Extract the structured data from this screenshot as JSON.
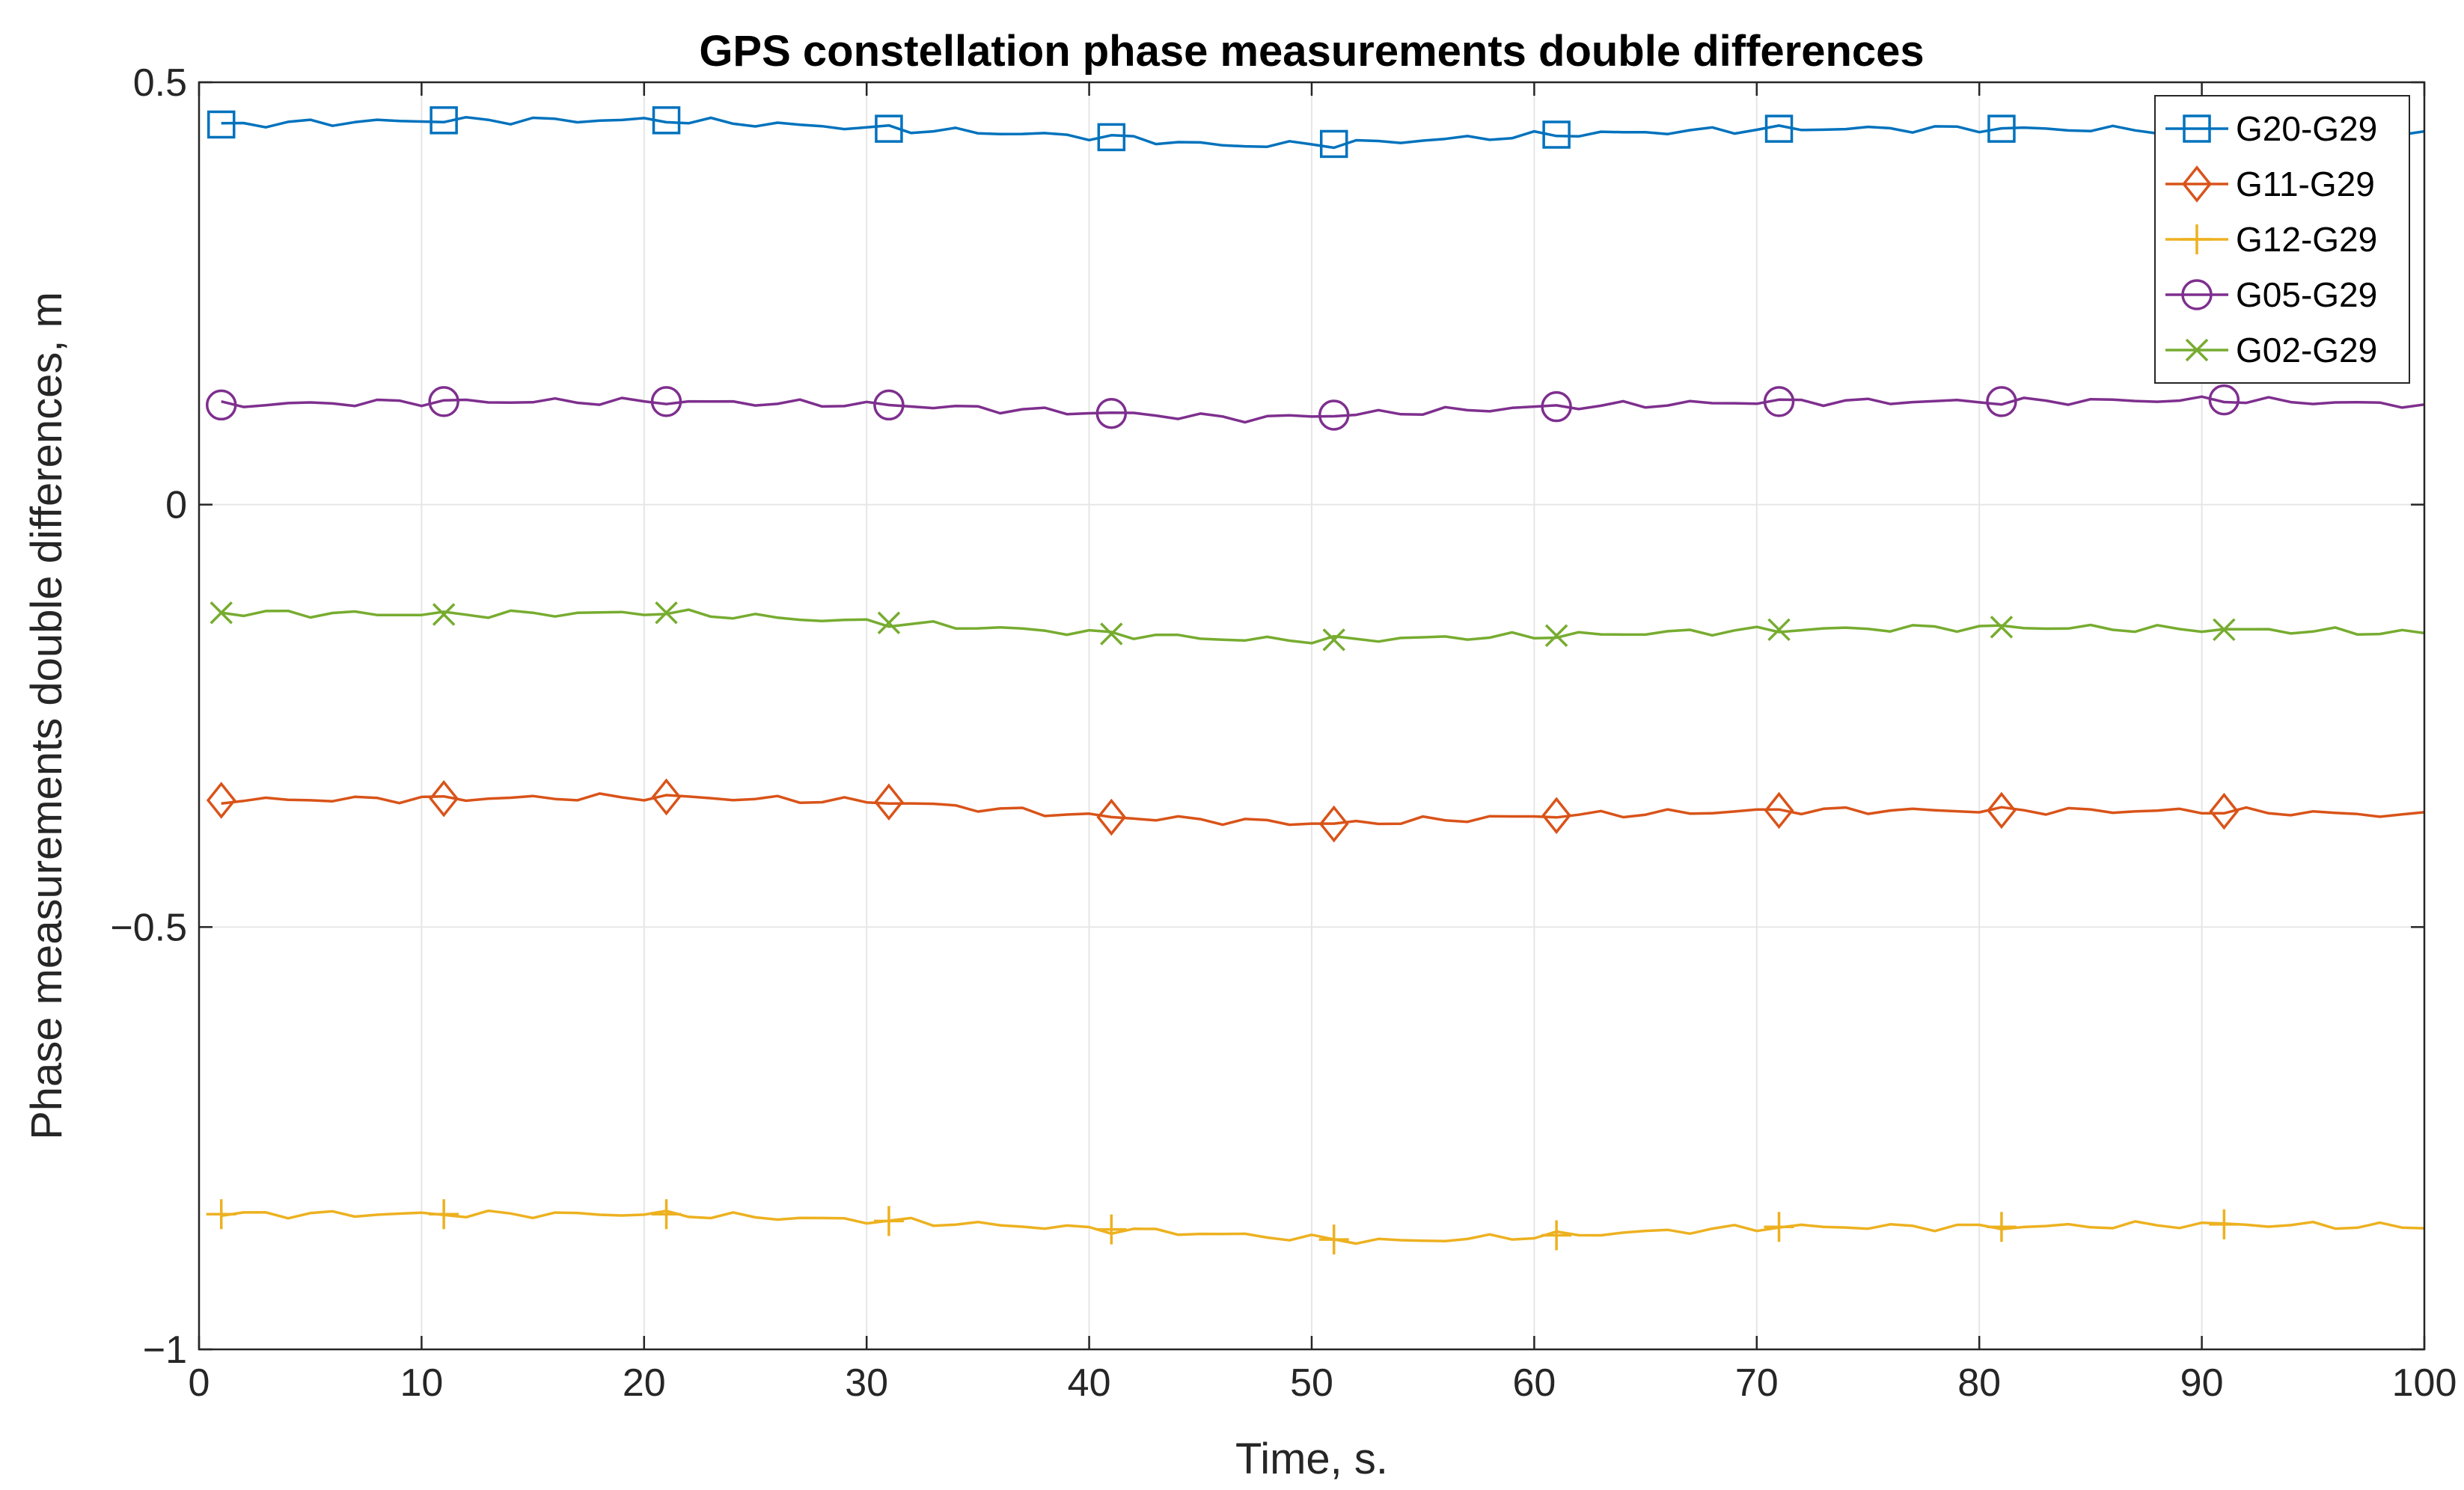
{
  "chart_data": {
    "type": "line",
    "title": "GPS constellation phase measurements double differences",
    "xlabel": "Time, s.",
    "ylabel": "Phase measurements double differences, m",
    "xlim": [
      0,
      100
    ],
    "ylim": [
      -1,
      0.5
    ],
    "xticks": [
      0,
      10,
      20,
      30,
      40,
      50,
      60,
      70,
      80,
      90,
      100
    ],
    "yticks": [
      0.5,
      0,
      -0.5,
      -1
    ],
    "ytick_labels": [
      "0.5",
      "0",
      "−0.5",
      "−1"
    ],
    "grid": true,
    "legend_position": "top-right",
    "marker_x": [
      1,
      11,
      21,
      31,
      41,
      51,
      61,
      71,
      81,
      91
    ],
    "series": [
      {
        "name": "G20-G29",
        "color": "#0072BD",
        "marker": "square",
        "anchors_x": [
          1,
          11,
          21,
          31,
          41,
          46,
          51,
          61,
          71,
          81,
          91,
          100
        ],
        "anchors_y": [
          0.45,
          0.455,
          0.455,
          0.445,
          0.435,
          0.425,
          0.427,
          0.438,
          0.445,
          0.445,
          0.443,
          0.44
        ]
      },
      {
        "name": "G11-G29",
        "color": "#D95319",
        "marker": "diamond",
        "anchors_x": [
          1,
          11,
          21,
          31,
          41,
          51,
          61,
          71,
          81,
          91,
          100
        ],
        "anchors_y": [
          -0.35,
          -0.348,
          -0.346,
          -0.352,
          -0.37,
          -0.378,
          -0.368,
          -0.362,
          -0.362,
          -0.363,
          -0.368
        ]
      },
      {
        "name": "G12-G29",
        "color": "#EDB120",
        "marker": "plus",
        "anchors_x": [
          1,
          11,
          21,
          31,
          41,
          51,
          54,
          61,
          71,
          81,
          91,
          100
        ],
        "anchors_y": [
          -0.84,
          -0.84,
          -0.84,
          -0.848,
          -0.858,
          -0.87,
          -0.872,
          -0.865,
          -0.855,
          -0.855,
          -0.852,
          -0.855
        ]
      },
      {
        "name": "G05-G29",
        "color": "#7E2F8E",
        "marker": "circle",
        "anchors_x": [
          1,
          11,
          21,
          31,
          41,
          47,
          51,
          61,
          71,
          81,
          91,
          100
        ],
        "anchors_y": [
          0.118,
          0.122,
          0.122,
          0.118,
          0.108,
          0.102,
          0.106,
          0.116,
          0.122,
          0.122,
          0.124,
          0.118
        ]
      },
      {
        "name": "G02-G29",
        "color": "#77AC30",
        "marker": "x",
        "anchors_x": [
          1,
          11,
          21,
          31,
          41,
          47,
          51,
          61,
          71,
          81,
          91,
          100
        ],
        "anchors_y": [
          -0.128,
          -0.13,
          -0.128,
          -0.14,
          -0.153,
          -0.16,
          -0.16,
          -0.155,
          -0.148,
          -0.145,
          -0.148,
          -0.152
        ]
      }
    ]
  }
}
